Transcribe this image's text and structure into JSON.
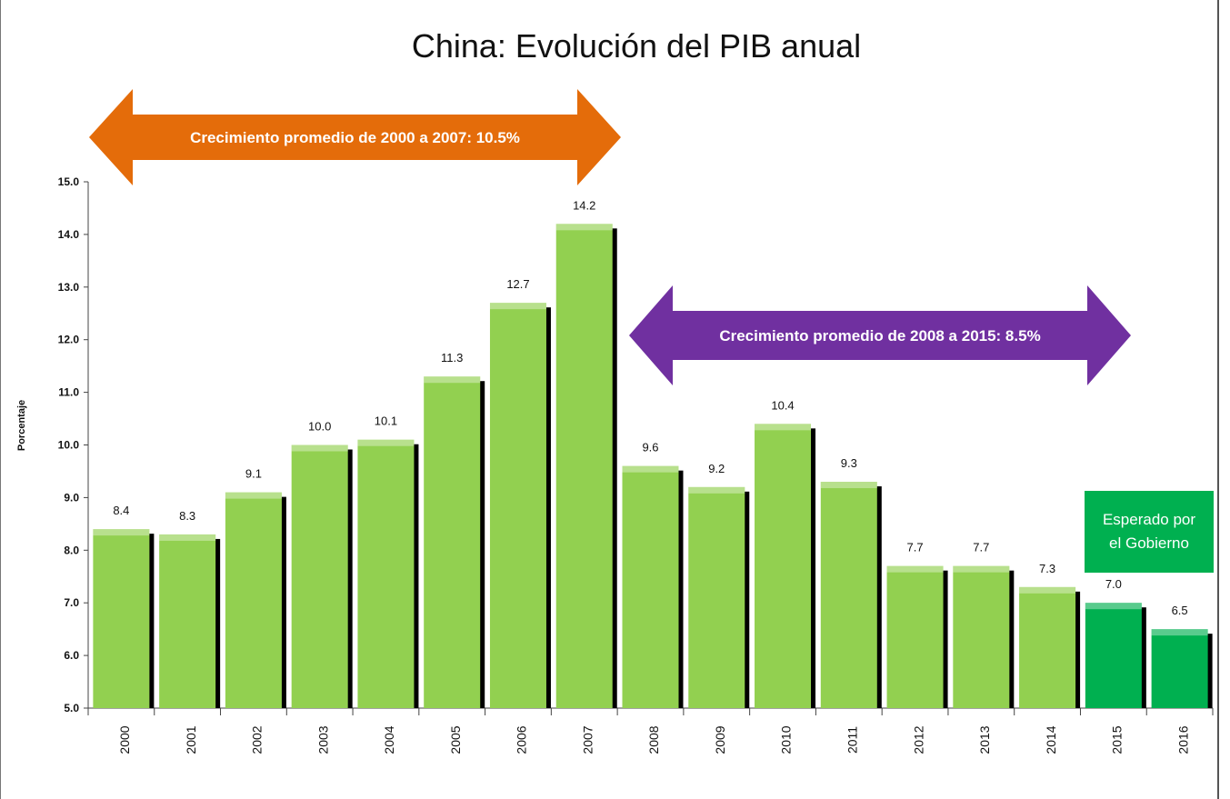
{
  "chart_data": {
    "type": "bar",
    "title": "China: Evolución del PIB anual",
    "ylabel": "Porcentaje",
    "xlabel": "",
    "ylim": [
      5.0,
      15.0
    ],
    "yticks": [
      "5.0",
      "6.0",
      "7.0",
      "8.0",
      "9.0",
      "10.0",
      "11.0",
      "12.0",
      "13.0",
      "14.0",
      "15.0"
    ],
    "categories": [
      "2000",
      "2001",
      "2002",
      "2003",
      "2004",
      "2005",
      "2006",
      "2007",
      "2008",
      "2009",
      "2010",
      "2011",
      "2012",
      "2013",
      "2014",
      "2015",
      "2016"
    ],
    "values": [
      8.4,
      8.3,
      9.1,
      10.0,
      10.1,
      11.3,
      12.7,
      14.2,
      9.6,
      9.2,
      10.4,
      9.3,
      7.7,
      7.7,
      7.3,
      7.0,
      6.5
    ],
    "value_labels": [
      "8.4",
      "8.3",
      "9.1",
      "10.0",
      "10.1",
      "11.3",
      "12.7",
      "14.2",
      "9.6",
      "9.2",
      "10.4",
      "9.3",
      "7.7",
      "7.7",
      "7.3",
      "7.0",
      "6.5"
    ],
    "expected_categories": [
      "2015",
      "2016"
    ],
    "annotations": [
      {
        "text": "Crecimiento promedio de 2000 a 2007: 10.5%",
        "color": "#e46c0a",
        "from": "2000",
        "to": "2007"
      },
      {
        "text": "Crecimiento promedio de 2008 a 2015: 8.5%",
        "color": "#7030a0",
        "from": "2008",
        "to": "2015"
      }
    ],
    "callout": "Esperado por\nel Gobierno",
    "colors": {
      "actual": "#92d050",
      "expected": "#00b050",
      "shadow": "#000000"
    },
    "grid": false,
    "legend": "none"
  }
}
